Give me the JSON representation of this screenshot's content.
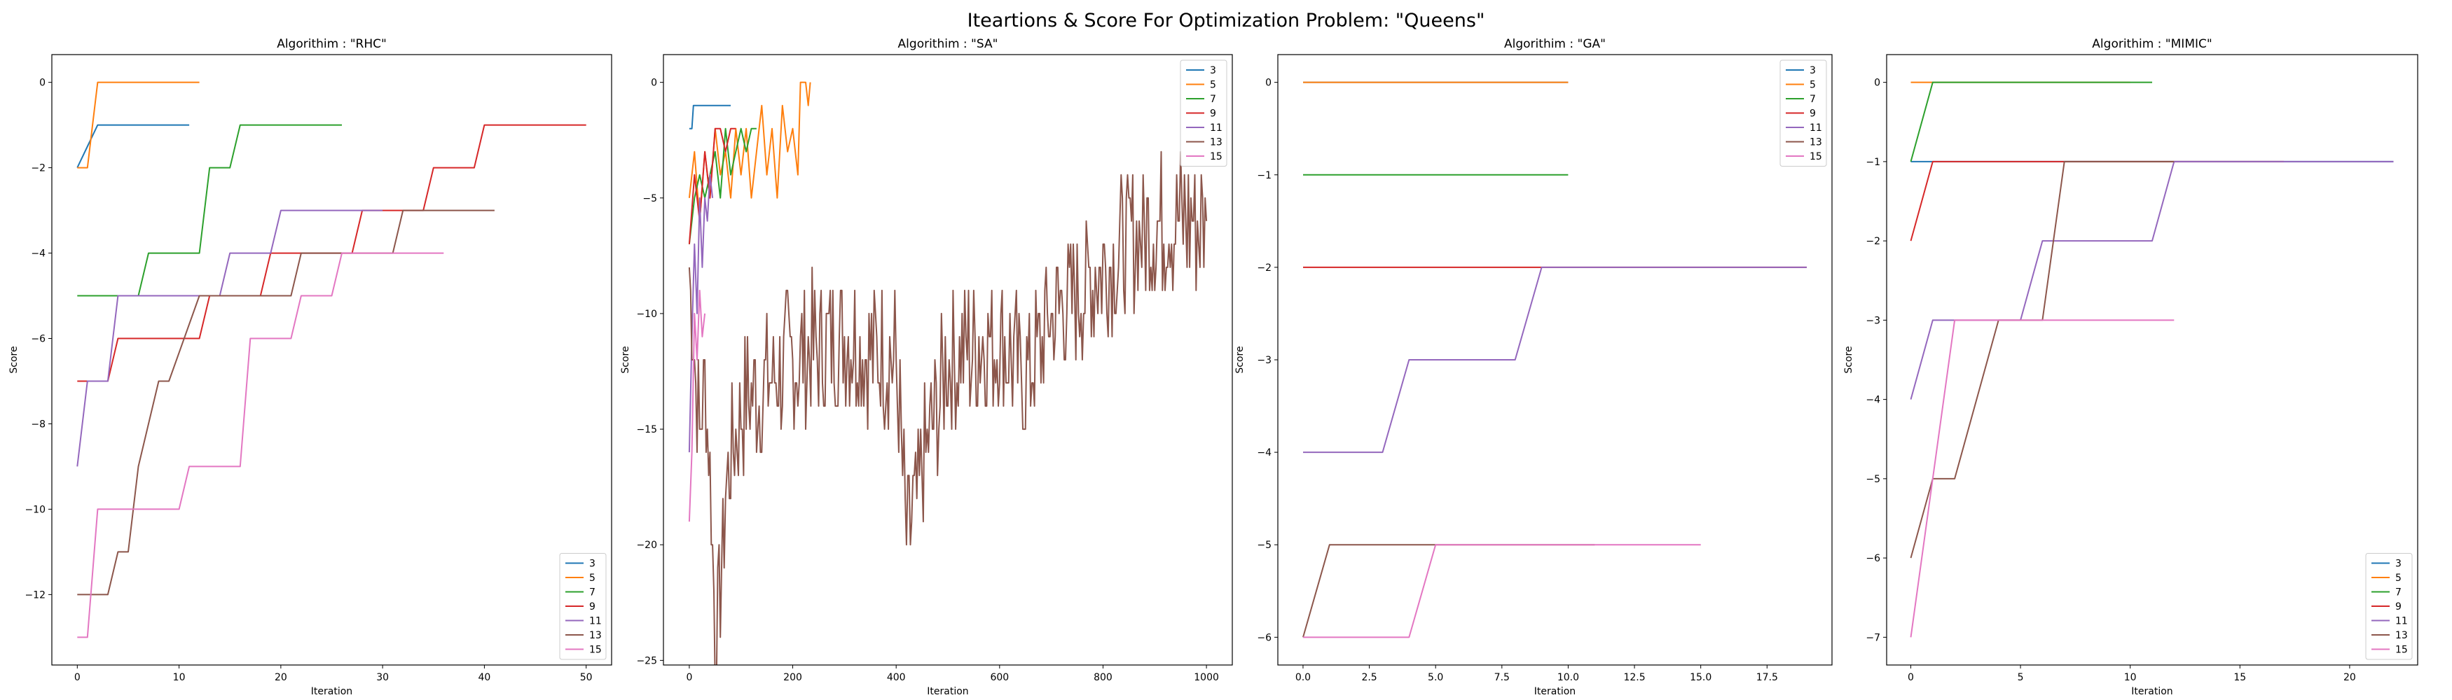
{
  "page_title": "Iteartions & Score For Optimization Problem: \"Queens\"",
  "colors": {
    "3": "#1f77b4",
    "5": "#ff7f0e",
    "7": "#2ca02c",
    "9": "#d62728",
    "11": "#9467bd",
    "13": "#8c564b",
    "15": "#e377c2"
  },
  "chart_data": [
    {
      "type": "line",
      "title": "Algorithim : \"RHC\"",
      "xlabel": "Iteration",
      "ylabel": "Score",
      "xlim": [
        -2.5,
        52.5
      ],
      "ylim": [
        -13.65,
        0.65
      ],
      "xticks": [
        0,
        10,
        20,
        30,
        40,
        50
      ],
      "yticks": [
        0,
        -2,
        -4,
        -6,
        -8,
        -10,
        -12
      ],
      "legend_position": "lower-right",
      "series": [
        {
          "name": "3",
          "points": [
            [
              0,
              -2
            ],
            [
              2,
              -1
            ],
            [
              11,
              -1
            ]
          ]
        },
        {
          "name": "5",
          "points": [
            [
              0,
              -2
            ],
            [
              1,
              -2
            ],
            [
              2,
              0
            ],
            [
              12,
              0
            ]
          ]
        },
        {
          "name": "7",
          "points": [
            [
              0,
              -5
            ],
            [
              6,
              -5
            ],
            [
              7,
              -4
            ],
            [
              12,
              -4
            ],
            [
              13,
              -2
            ],
            [
              15,
              -2
            ],
            [
              16,
              -1
            ],
            [
              26,
              -1
            ]
          ]
        },
        {
          "name": "9",
          "points": [
            [
              0,
              -7
            ],
            [
              3,
              -7
            ],
            [
              4,
              -6
            ],
            [
              12,
              -6
            ],
            [
              13,
              -5
            ],
            [
              18,
              -5
            ],
            [
              19,
              -4
            ],
            [
              27,
              -4
            ],
            [
              28,
              -3
            ],
            [
              34,
              -3
            ],
            [
              35,
              -2
            ],
            [
              39,
              -2
            ],
            [
              40,
              -1
            ],
            [
              50,
              -1
            ]
          ]
        },
        {
          "name": "11",
          "points": [
            [
              0,
              -9
            ],
            [
              1,
              -7
            ],
            [
              3,
              -7
            ],
            [
              4,
              -5
            ],
            [
              14,
              -5
            ],
            [
              15,
              -4
            ],
            [
              19,
              -4
            ],
            [
              20,
              -3
            ],
            [
              30,
              -3
            ]
          ]
        },
        {
          "name": "13",
          "points": [
            [
              0,
              -12
            ],
            [
              3,
              -12
            ],
            [
              4,
              -11
            ],
            [
              5,
              -11
            ],
            [
              6,
              -9
            ],
            [
              8,
              -7
            ],
            [
              9,
              -7
            ],
            [
              12,
              -5
            ],
            [
              21,
              -5
            ],
            [
              22,
              -4
            ],
            [
              31,
              -4
            ],
            [
              32,
              -3
            ],
            [
              41,
              -3
            ]
          ]
        },
        {
          "name": "15",
          "points": [
            [
              0,
              -13
            ],
            [
              1,
              -13
            ],
            [
              2,
              -10
            ],
            [
              10,
              -10
            ],
            [
              11,
              -9
            ],
            [
              16,
              -9
            ],
            [
              17,
              -6
            ],
            [
              21,
              -6
            ],
            [
              22,
              -5
            ],
            [
              25,
              -5
            ],
            [
              26,
              -4
            ],
            [
              36,
              -4
            ]
          ]
        }
      ]
    },
    {
      "type": "line",
      "title": "Algorithim : \"SA\"",
      "xlabel": "Iteration",
      "ylabel": "Score",
      "xlim": [
        -50,
        1050
      ],
      "ylim": [
        -25.2,
        1.2
      ],
      "xticks": [
        0,
        200,
        400,
        600,
        800,
        1000
      ],
      "yticks": [
        0,
        -5,
        -10,
        -15,
        -20,
        -25
      ],
      "legend_position": "upper-right",
      "series": [
        {
          "name": "3",
          "points": [
            [
              0,
              -2
            ],
            [
              5,
              -2
            ],
            [
              8,
              -1
            ],
            [
              80,
              -1
            ]
          ]
        },
        {
          "name": "5",
          "points": [
            [
              0,
              -5
            ],
            [
              10,
              -3
            ],
            [
              20,
              -6
            ],
            [
              30,
              -3
            ],
            [
              40,
              -5
            ],
            [
              50,
              -2
            ],
            [
              60,
              -4
            ],
            [
              70,
              -3
            ],
            [
              80,
              -5
            ],
            [
              90,
              -2
            ],
            [
              100,
              -4
            ],
            [
              110,
              -2
            ],
            [
              120,
              -5
            ],
            [
              130,
              -3
            ],
            [
              140,
              -1
            ],
            [
              150,
              -4
            ],
            [
              160,
              -2
            ],
            [
              170,
              -5
            ],
            [
              180,
              -1
            ],
            [
              190,
              -3
            ],
            [
              200,
              -2
            ],
            [
              210,
              -4
            ],
            [
              215,
              0
            ],
            [
              225,
              0
            ],
            [
              230,
              -1
            ],
            [
              234,
              0
            ]
          ]
        },
        {
          "name": "7",
          "points": [
            [
              0,
              -7
            ],
            [
              10,
              -5
            ],
            [
              20,
              -4
            ],
            [
              30,
              -5
            ],
            [
              40,
              -4
            ],
            [
              50,
              -3
            ],
            [
              60,
              -5
            ],
            [
              70,
              -2
            ],
            [
              80,
              -4
            ],
            [
              90,
              -3
            ],
            [
              100,
              -2
            ],
            [
              110,
              -3
            ],
            [
              120,
              -2
            ],
            [
              130,
              -2
            ]
          ]
        },
        {
          "name": "9",
          "points": [
            [
              0,
              -7
            ],
            [
              10,
              -4
            ],
            [
              20,
              -6
            ],
            [
              30,
              -3
            ],
            [
              40,
              -5
            ],
            [
              50,
              -2
            ],
            [
              60,
              -2
            ],
            [
              70,
              -3
            ],
            [
              80,
              -2
            ],
            [
              90,
              -2
            ]
          ]
        },
        {
          "name": "11",
          "points": [
            [
              0,
              -16
            ],
            [
              5,
              -11
            ],
            [
              10,
              -7
            ],
            [
              15,
              -10
            ],
            [
              20,
              -5
            ],
            [
              25,
              -8
            ],
            [
              30,
              -5
            ],
            [
              35,
              -6
            ],
            [
              40,
              -4
            ],
            [
              45,
              -5
            ]
          ]
        },
        {
          "name": "13",
          "noise": true,
          "points": [
            [
              0,
              -8
            ],
            [
              10,
              -12
            ],
            [
              20,
              -15
            ],
            [
              30,
              -13
            ],
            [
              40,
              -17
            ],
            [
              50,
              -24
            ],
            [
              60,
              -22
            ],
            [
              70,
              -18
            ],
            [
              80,
              -16
            ],
            [
              100,
              -14
            ],
            [
              150,
              -13
            ],
            [
              200,
              -12
            ],
            [
              300,
              -11
            ],
            [
              400,
              -12
            ],
            [
              420,
              -20
            ],
            [
              500,
              -12
            ],
            [
              600,
              -11
            ],
            [
              650,
              -13
            ],
            [
              700,
              -10
            ],
            [
              800,
              -8
            ],
            [
              850,
              -7
            ],
            [
              900,
              -6
            ],
            [
              950,
              -6
            ],
            [
              1000,
              -6
            ]
          ]
        },
        {
          "name": "15",
          "points": [
            [
              0,
              -19
            ],
            [
              5,
              -16
            ],
            [
              10,
              -10
            ],
            [
              15,
              -12
            ],
            [
              20,
              -9
            ],
            [
              25,
              -11
            ],
            [
              30,
              -10
            ]
          ]
        }
      ]
    },
    {
      "type": "line",
      "title": "Algorithim : \"GA\"",
      "xlabel": "Iteration",
      "ylabel": "Score",
      "xlim": [
        -0.95,
        19.95
      ],
      "ylim": [
        -6.3,
        0.3
      ],
      "xticks": [
        0.0,
        2.5,
        5.0,
        7.5,
        10.0,
        12.5,
        15.0,
        17.5
      ],
      "yticks": [
        0,
        -1,
        -2,
        -3,
        -4,
        -5,
        -6
      ],
      "legend_position": "upper-right",
      "series": [
        {
          "name": "3",
          "points": [
            [
              0,
              0
            ],
            [
              10,
              0
            ]
          ]
        },
        {
          "name": "5",
          "points": [
            [
              0,
              0
            ],
            [
              10,
              0
            ]
          ]
        },
        {
          "name": "7",
          "points": [
            [
              0,
              -1
            ],
            [
              10,
              -1
            ]
          ]
        },
        {
          "name": "9",
          "points": [
            [
              0,
              -2
            ],
            [
              19,
              -2
            ]
          ]
        },
        {
          "name": "11",
          "points": [
            [
              0,
              -4
            ],
            [
              3,
              -4
            ],
            [
              4,
              -3
            ],
            [
              8,
              -3
            ],
            [
              9,
              -2
            ],
            [
              19,
              -2
            ]
          ]
        },
        {
          "name": "13",
          "points": [
            [
              0,
              -6
            ],
            [
              1,
              -5
            ],
            [
              11,
              -5
            ]
          ]
        },
        {
          "name": "15",
          "points": [
            [
              0,
              -6
            ],
            [
              4,
              -6
            ],
            [
              5,
              -5
            ],
            [
              15,
              -5
            ]
          ]
        }
      ]
    },
    {
      "type": "line",
      "title": "Algorithim : \"MIMIC\"",
      "xlabel": "Iteration",
      "ylabel": "Score",
      "xlim": [
        -1.1,
        23.1
      ],
      "ylim": [
        -7.35,
        0.35
      ],
      "xticks": [
        0,
        5,
        10,
        15,
        20
      ],
      "yticks": [
        0,
        -1,
        -2,
        -3,
        -4,
        -5,
        -6,
        -7
      ],
      "legend_position": "lower-right",
      "series": [
        {
          "name": "3",
          "points": [
            [
              0,
              -1
            ],
            [
              1,
              -1
            ],
            [
              22,
              -1
            ]
          ]
        },
        {
          "name": "5",
          "points": [
            [
              0,
              0
            ],
            [
              10,
              0
            ]
          ]
        },
        {
          "name": "7",
          "points": [
            [
              0,
              -1
            ],
            [
              1,
              0
            ],
            [
              11,
              0
            ]
          ]
        },
        {
          "name": "9",
          "points": [
            [
              0,
              -2
            ],
            [
              1,
              -1
            ],
            [
              17,
              -1
            ]
          ]
        },
        {
          "name": "11",
          "points": [
            [
              0,
              -4
            ],
            [
              1,
              -3
            ],
            [
              5,
              -3
            ],
            [
              6,
              -2
            ],
            [
              11,
              -2
            ],
            [
              12,
              -1
            ],
            [
              22,
              -1
            ]
          ]
        },
        {
          "name": "13",
          "points": [
            [
              0,
              -6
            ],
            [
              1,
              -5
            ],
            [
              2,
              -5
            ],
            [
              4,
              -3
            ],
            [
              6,
              -3
            ],
            [
              7,
              -1
            ],
            [
              12,
              -1
            ]
          ]
        },
        {
          "name": "15",
          "points": [
            [
              0,
              -7
            ],
            [
              1,
              -5
            ],
            [
              2,
              -3
            ],
            [
              12,
              -3
            ]
          ]
        }
      ]
    }
  ]
}
